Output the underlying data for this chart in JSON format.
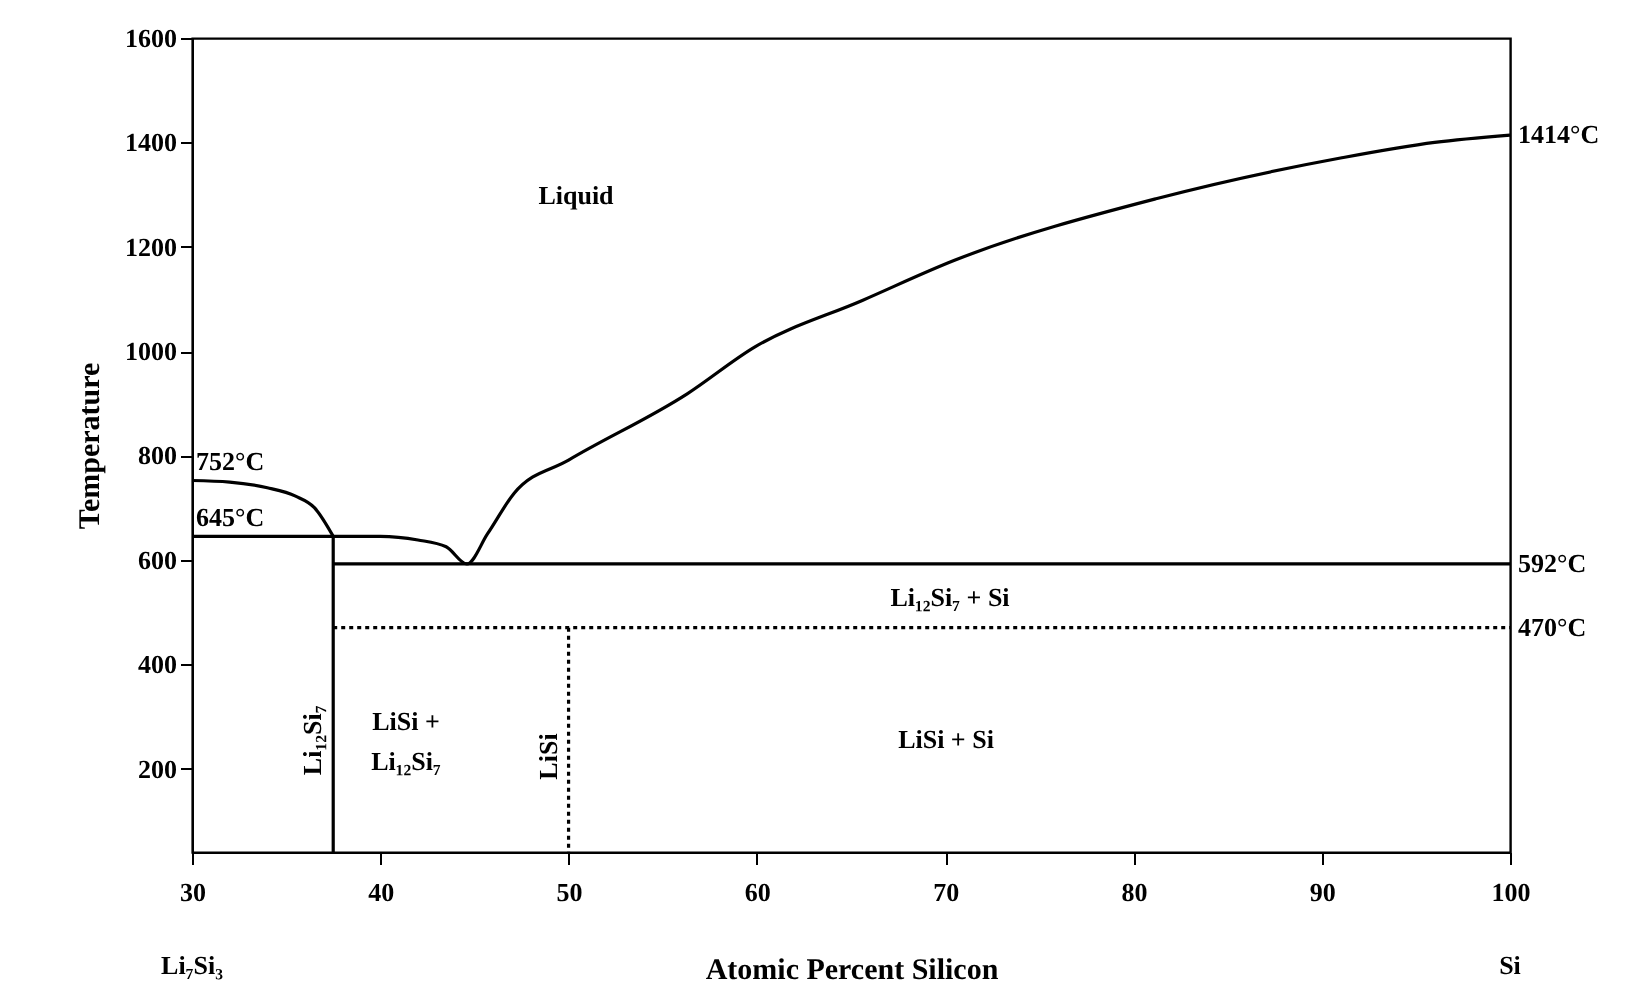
{
  "chart_data": {
    "type": "line",
    "xlabel": "Atomic Percent Silicon",
    "ylabel": "Temperature",
    "xlim": [
      30,
      100
    ],
    "xticks": [
      30,
      40,
      50,
      60,
      70,
      80,
      90,
      100
    ],
    "ylim": [
      40,
      1600
    ],
    "yticks": [
      200,
      400,
      600,
      800,
      1000,
      1200,
      1400,
      1600
    ],
    "grid": false,
    "marker": "none",
    "series": [
      {
        "color": "#000000",
        "line_style": "solid",
        "x": [
          30,
          32,
          34,
          35.5,
          36.5,
          37.5
        ],
        "values": [
          752,
          749,
          738,
          722,
          700,
          645
        ]
      },
      {
        "color": "#000000",
        "line_style": "solid",
        "x": [
          30,
          37.5,
          40,
          42,
          43.5,
          44.6,
          45.7,
          47.1,
          50,
          56.3,
          59.9,
          65.6,
          70.5,
          81.2,
          91,
          96,
          100
        ],
        "values": [
          645,
          645,
          645,
          638,
          625,
          592,
          650,
          727,
          791,
          918,
          1008,
          1097,
          1174,
          1292,
          1370,
          1400,
          1414
        ]
      },
      {
        "color": "#000000",
        "line_style": "solid",
        "x": [
          37.5,
          37.5
        ],
        "values": [
          645,
          40
        ]
      },
      {
        "color": "#000000",
        "line_style": "solid",
        "x": [
          37.5,
          100
        ],
        "values": [
          592,
          592
        ]
      },
      {
        "color": "#000000",
        "line_style": "dotted",
        "x": [
          37.5,
          100
        ],
        "values": [
          470,
          470
        ]
      },
      {
        "color": "#000000",
        "line_style": "dotted",
        "x": [
          50,
          50
        ],
        "values": [
          470,
          40
        ]
      }
    ],
    "annotations": [
      "Liquid",
      {
        "text": "752°C",
        "x": 30,
        "y": 752
      },
      {
        "text": "645°C",
        "x": 30,
        "y": 645
      },
      {
        "text": "1414°C",
        "x": 100,
        "y": 1414
      },
      {
        "text": "592°C",
        "x": 100,
        "y": 592
      },
      {
        "text": "470°C",
        "x": 100,
        "y": 470
      },
      "Li₁₂Si₇ + Si",
      "LiSi + Si",
      "LiSi +",
      "Li₁₂Si₇",
      {
        "text": "Li₁₂Si₇",
        "x": 37.5,
        "y": 254
      },
      {
        "text": "LiSi",
        "x": 50,
        "y": 223
      },
      "Li₇Si₃",
      "Si"
    ]
  }
}
